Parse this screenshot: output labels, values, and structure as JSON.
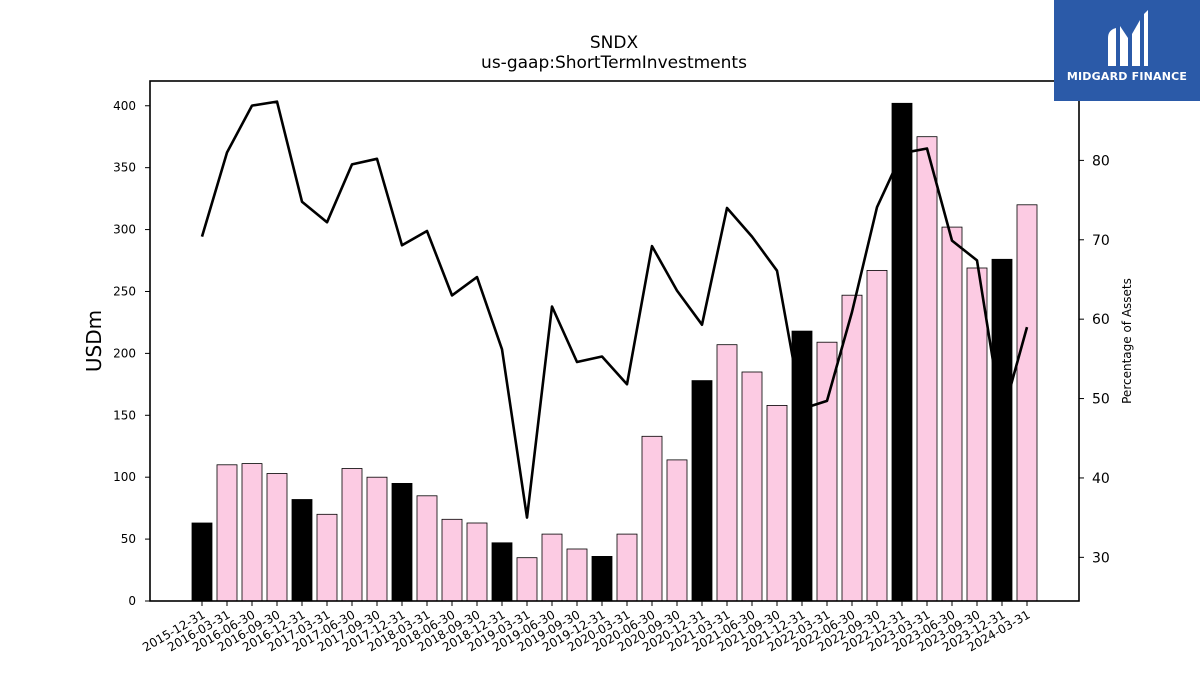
{
  "chart_data": {
    "type": "bar",
    "title": "SNDX",
    "subtitle": "us-gaap:ShortTermInvestments",
    "ylabel": "USDm",
    "y2label": "Percentage of Assets",
    "ylim": [
      0,
      420
    ],
    "y2lim": [
      24.5,
      90
    ],
    "yticks": [
      0,
      50,
      100,
      150,
      200,
      250,
      300,
      350,
      400
    ],
    "y2ticks": [
      30,
      40,
      50,
      60,
      70,
      80
    ],
    "grid": false,
    "categories": [
      "2015-12-31",
      "2016-03-31",
      "2016-06-30",
      "2016-09-30",
      "2016-12-31",
      "2017-03-31",
      "2017-06-30",
      "2017-09-30",
      "2017-12-31",
      "2018-03-31",
      "2018-06-30",
      "2018-09-30",
      "2018-12-31",
      "2019-03-31",
      "2019-06-30",
      "2019-09-30",
      "2019-12-31",
      "2020-03-31",
      "2020-06-30",
      "2020-09-30",
      "2020-12-31",
      "2021-03-31",
      "2021-06-30",
      "2021-09-30",
      "2021-12-31",
      "2022-03-31",
      "2022-06-30",
      "2022-09-30",
      "2022-12-31",
      "2023-03-31",
      "2023-06-30",
      "2023-09-30",
      "2023-12-31",
      "2024-03-31"
    ],
    "series": [
      {
        "kind": "bar",
        "axis": "left",
        "values": [
          63,
          110,
          111,
          103,
          82,
          70,
          107,
          100,
          95,
          85,
          66,
          63,
          47,
          35,
          54,
          42,
          36,
          54,
          133,
          114,
          178,
          207,
          185,
          158,
          218,
          209,
          247,
          267,
          402,
          375,
          302,
          269,
          276,
          320
        ]
      },
      {
        "kind": "line",
        "axis": "right",
        "values": [
          70.4,
          81.0,
          86.9,
          87.4,
          74.8,
          72.2,
          79.5,
          80.2,
          69.3,
          71.1,
          63.0,
          65.3,
          56.2,
          35.0,
          61.6,
          54.6,
          55.3,
          51.8,
          69.2,
          63.6,
          59.3,
          74.0,
          70.4,
          66.1,
          48.7,
          49.7,
          60.9,
          74.1,
          80.9,
          81.5,
          69.9,
          67.4,
          47.6,
          59.0
        ]
      }
    ],
    "colors": {
      "bar_fill": "#fccbe3",
      "bar_fill_yearend": "#000000",
      "bar_edge": "#000000",
      "line": "#000000"
    }
  },
  "logo": {
    "text": "MIDGARD FINANCE",
    "background": "#2b5aa8",
    "icon": "midgard-m-icon"
  }
}
